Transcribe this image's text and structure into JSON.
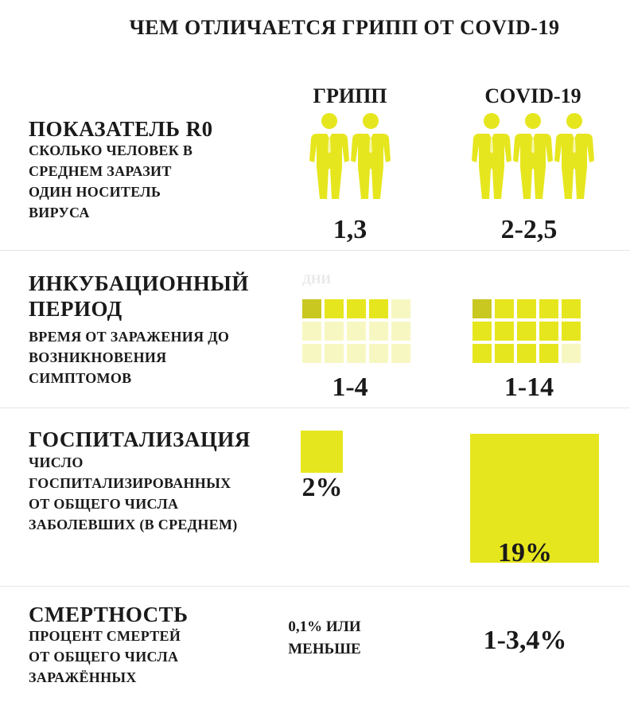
{
  "title": "ЧЕМ ОТЛИЧАЕТСЯ ГРИПП ОТ COVID-19",
  "columns": {
    "flu": "ГРИПП",
    "covid": "COVID-19"
  },
  "colors": {
    "accent": "#e6e61e",
    "dark": "#c9c820",
    "light": "#f2f28a",
    "pale": "#f7f7c2"
  },
  "sections": {
    "r0": {
      "title": "ПОКАЗАТЕЛЬ R0",
      "desc": [
        "СКОЛЬКО ЧЕЛОВЕК В",
        "СРЕДНЕМ ЗАРАЗИТ",
        "ОДИН НОСИТЕЛЬ",
        "ВИРУСА"
      ],
      "flu_value": "1,3",
      "covid_value": "2-2,5",
      "flu_icons": 2,
      "covid_icons": 3,
      "icon": "person-icon"
    },
    "incubation": {
      "title_lines": [
        "ИНКУБАЦИОННЫЙ",
        "ПЕРИОД"
      ],
      "desc": [
        "ВРЕМЯ ОТ ЗАРАЖЕНИЯ ДО",
        "ВОЗНИКНОВЕНИЯ",
        "СИМПТОМОВ"
      ],
      "day_label": "ДНИ",
      "flu_value": "1-4",
      "covid_value": "1-14",
      "flu_days": 4,
      "covid_days": 14,
      "grid_cells": 15
    },
    "hospital": {
      "title": "ГОСПИТАЛИЗАЦИЯ",
      "desc": [
        "ЧИСЛО",
        "ГОСПИТАЛИЗИРОВАННЫХ",
        "ОТ ОБЩЕГО ЧИСЛА",
        "ЗАБОЛЕВШИХ (В СРЕДНЕМ)"
      ],
      "flu_value": "2%",
      "covid_value": "19%",
      "flu_percent": 2,
      "covid_percent": 19
    },
    "mortality": {
      "title": "СМЕРТНОСТЬ",
      "desc": [
        "ПРОЦЕНТ СМЕРТЕЙ",
        "ОТ ОБЩЕГО ЧИСЛА",
        "ЗАРАЖЁННЫХ"
      ],
      "flu_value": [
        "0,1% ИЛИ",
        "МЕНЬШЕ"
      ],
      "covid_value": "1-3,4%"
    }
  }
}
